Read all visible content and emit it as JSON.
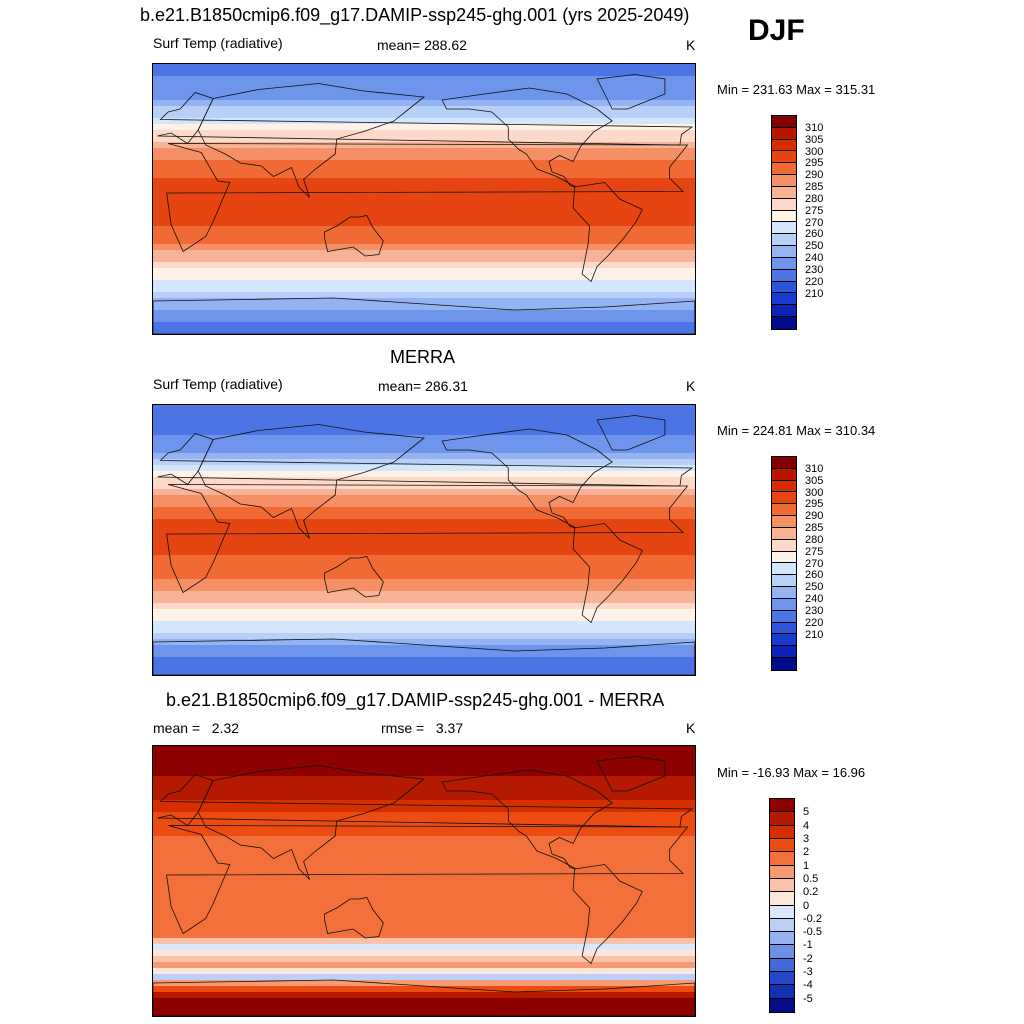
{
  "header": {
    "season": "DJF"
  },
  "colors": {
    "temp": [
      "#820000",
      "#b81400",
      "#d62d00",
      "#e64411",
      "#f26a33",
      "#f58f66",
      "#f8b295",
      "#fcd9c8",
      "#fdf1e8",
      "#d4e6fb",
      "#b7d0f7",
      "#93b3f2",
      "#6f94ec",
      "#4c74e5",
      "#2e54db",
      "#1a3bcf",
      "#0d23b8",
      "#000b8c"
    ],
    "diff": [
      "#8c0000",
      "#b51a00",
      "#d52f00",
      "#ec4c12",
      "#f4703a",
      "#f79a73",
      "#fac2a8",
      "#fde6da",
      "#dbe8fb",
      "#bccff6",
      "#95b1ef",
      "#6d90e6",
      "#4568d9",
      "#2548c8",
      "#1230b0",
      "#050d88"
    ]
  },
  "chart_data": [
    {
      "type": "heatmap",
      "name": "panel-model",
      "title": "b.e21.B1850cmip6.f09_g17.DAMIP-ssp245-ghg.001 (yrs 2025-2049)",
      "left_label": "Surf Temp (radiative)",
      "center_label": "mean= 288.62",
      "units": "K",
      "minmax": "Min = 231.63 Max = 315.31",
      "mean": 288.62,
      "min": 231.63,
      "max": 315.31,
      "colorbar_ticks": [
        "310",
        "305",
        "300",
        "295",
        "290",
        "285",
        "280",
        "275",
        "270",
        "260",
        "250",
        "240",
        "230",
        "220",
        "210"
      ],
      "lat_profile": [
        {
          "lat": 90,
          "v": 246
        },
        {
          "lat": 75,
          "v": 252
        },
        {
          "lat": 60,
          "v": 266
        },
        {
          "lat": 50,
          "v": 274
        },
        {
          "lat": 40,
          "v": 284
        },
        {
          "lat": 30,
          "v": 292
        },
        {
          "lat": 20,
          "v": 298
        },
        {
          "lat": 10,
          "v": 302
        },
        {
          "lat": 0,
          "v": 303
        },
        {
          "lat": -10,
          "v": 302
        },
        {
          "lat": -20,
          "v": 299
        },
        {
          "lat": -30,
          "v": 294
        },
        {
          "lat": -40,
          "v": 287
        },
        {
          "lat": -50,
          "v": 278
        },
        {
          "lat": -60,
          "v": 271
        },
        {
          "lat": -70,
          "v": 262
        },
        {
          "lat": -80,
          "v": 252
        },
        {
          "lat": -90,
          "v": 245
        }
      ]
    },
    {
      "type": "heatmap",
      "name": "panel-merra",
      "title": "MERRA",
      "left_label": "Surf Temp (radiative)",
      "center_label": "mean= 286.31",
      "units": "K",
      "minmax": "Min = 224.81 Max = 310.34",
      "mean": 286.31,
      "min": 224.81,
      "max": 310.34,
      "colorbar_ticks": [
        "310",
        "305",
        "300",
        "295",
        "290",
        "285",
        "280",
        "275",
        "270",
        "260",
        "250",
        "240",
        "230",
        "220",
        "210"
      ],
      "lat_profile": [
        {
          "lat": 90,
          "v": 240
        },
        {
          "lat": 75,
          "v": 245
        },
        {
          "lat": 60,
          "v": 258
        },
        {
          "lat": 50,
          "v": 268
        },
        {
          "lat": 40,
          "v": 280
        },
        {
          "lat": 30,
          "v": 290
        },
        {
          "lat": 20,
          "v": 297
        },
        {
          "lat": 10,
          "v": 301
        },
        {
          "lat": 0,
          "v": 302
        },
        {
          "lat": -10,
          "v": 300
        },
        {
          "lat": -20,
          "v": 297
        },
        {
          "lat": -30,
          "v": 292
        },
        {
          "lat": -40,
          "v": 285
        },
        {
          "lat": -50,
          "v": 277
        },
        {
          "lat": -60,
          "v": 270
        },
        {
          "lat": -70,
          "v": 258
        },
        {
          "lat": -80,
          "v": 246
        },
        {
          "lat": -90,
          "v": 240
        }
      ]
    },
    {
      "type": "heatmap",
      "name": "panel-diff",
      "title": "b.e21.B1850cmip6.f09_g17.DAMIP-ssp245-ghg.001 - MERRA",
      "left_label_prefix": "mean =",
      "left_label_value": "2.32",
      "center_label_prefix": "rmse =",
      "center_label_value": "3.37",
      "units": "K",
      "minmax": "Min = -16.93 Max =  16.96",
      "mean": 2.32,
      "rmse": 3.37,
      "min": -16.93,
      "max": 16.96,
      "colorbar_ticks": [
        "5",
        "4",
        "3",
        "2",
        "1",
        "0.5",
        "0.2",
        "0",
        "-0.2",
        "-0.5",
        "-1",
        "-2",
        "-3",
        "-4",
        "-5"
      ],
      "lat_profile": [
        {
          "lat": 90,
          "v": 6
        },
        {
          "lat": 70,
          "v": 5
        },
        {
          "lat": 55,
          "v": 4
        },
        {
          "lat": 40,
          "v": 2.5
        },
        {
          "lat": 20,
          "v": 1.5
        },
        {
          "lat": 0,
          "v": 1.5
        },
        {
          "lat": -20,
          "v": 1.5
        },
        {
          "lat": -35,
          "v": 1.2
        },
        {
          "lat": -45,
          "v": -0.3
        },
        {
          "lat": -55,
          "v": 0.8
        },
        {
          "lat": -65,
          "v": -0.5
        },
        {
          "lat": -78,
          "v": 5
        },
        {
          "lat": -90,
          "v": 6
        }
      ]
    }
  ]
}
